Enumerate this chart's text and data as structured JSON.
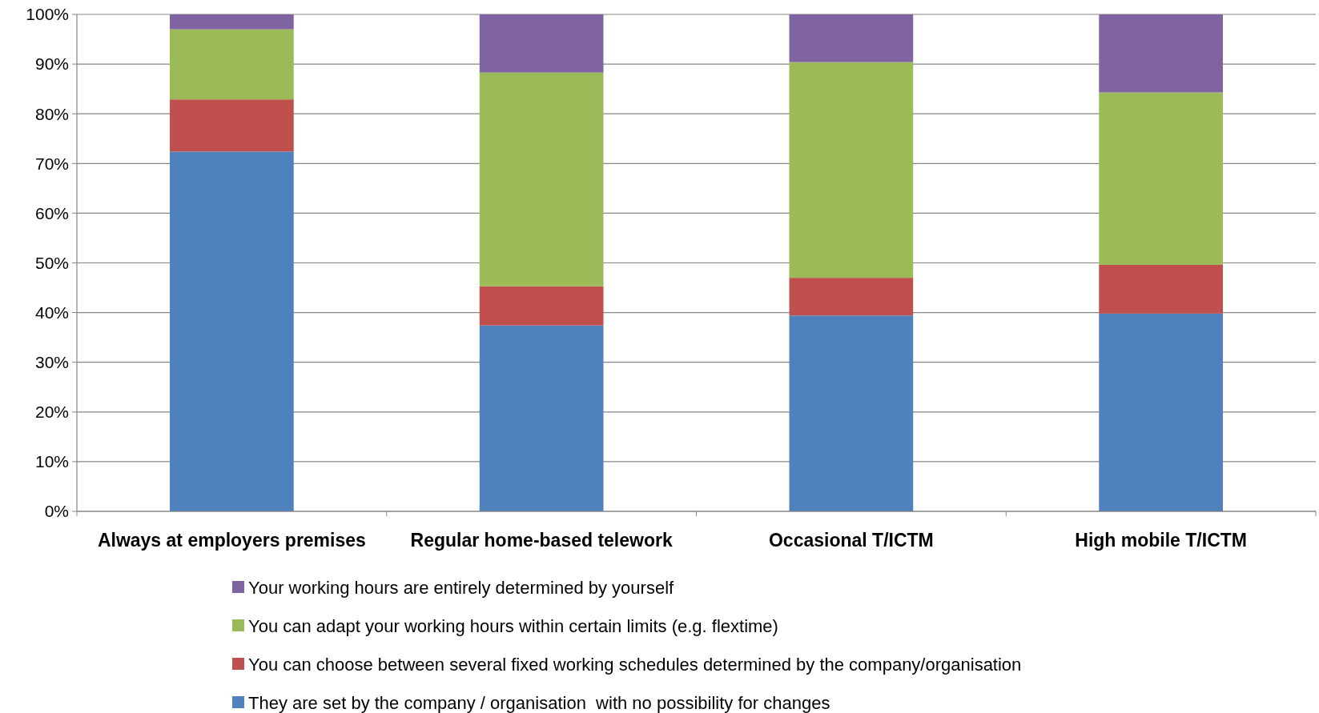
{
  "chart_data": {
    "type": "bar",
    "stacked": true,
    "categories": [
      "Always at employers premises",
      "Regular home-based telework",
      "Occasional T/ICTM",
      "High mobile T/ICTM"
    ],
    "series": [
      {
        "name": "They are set by the company / organisation  with no possibility for changes",
        "color": "#4f81bd",
        "values": [
          72.4,
          37.4,
          39.4,
          39.8
        ]
      },
      {
        "name": "You can choose between several fixed working schedules determined by the company/organisation",
        "color": "#c0504d",
        "values": [
          10.5,
          7.9,
          7.6,
          9.8
        ]
      },
      {
        "name": "You can adapt your working hours within certain limits (e.g. flextime)",
        "color": "#9bbb59",
        "values": [
          14.1,
          43.0,
          43.4,
          34.7
        ]
      },
      {
        "name": "Your working hours are entirely determined by yourself",
        "color": "#8064a2",
        "values": [
          3.0,
          11.7,
          9.6,
          15.7
        ]
      }
    ],
    "ylim": [
      0,
      100
    ],
    "yticks": [
      {
        "value": 0,
        "label": "0%"
      },
      {
        "value": 10,
        "label": "10%"
      },
      {
        "value": 20,
        "label": "20%"
      },
      {
        "value": 30,
        "label": "30%"
      },
      {
        "value": 40,
        "label": "40%"
      },
      {
        "value": 50,
        "label": "50%"
      },
      {
        "value": 60,
        "label": "60%"
      },
      {
        "value": 70,
        "label": "70%"
      },
      {
        "value": 80,
        "label": "80%"
      },
      {
        "value": 90,
        "label": "90%"
      },
      {
        "value": 100,
        "label": "100%"
      }
    ],
    "grid": "y",
    "legend": "bottom"
  }
}
